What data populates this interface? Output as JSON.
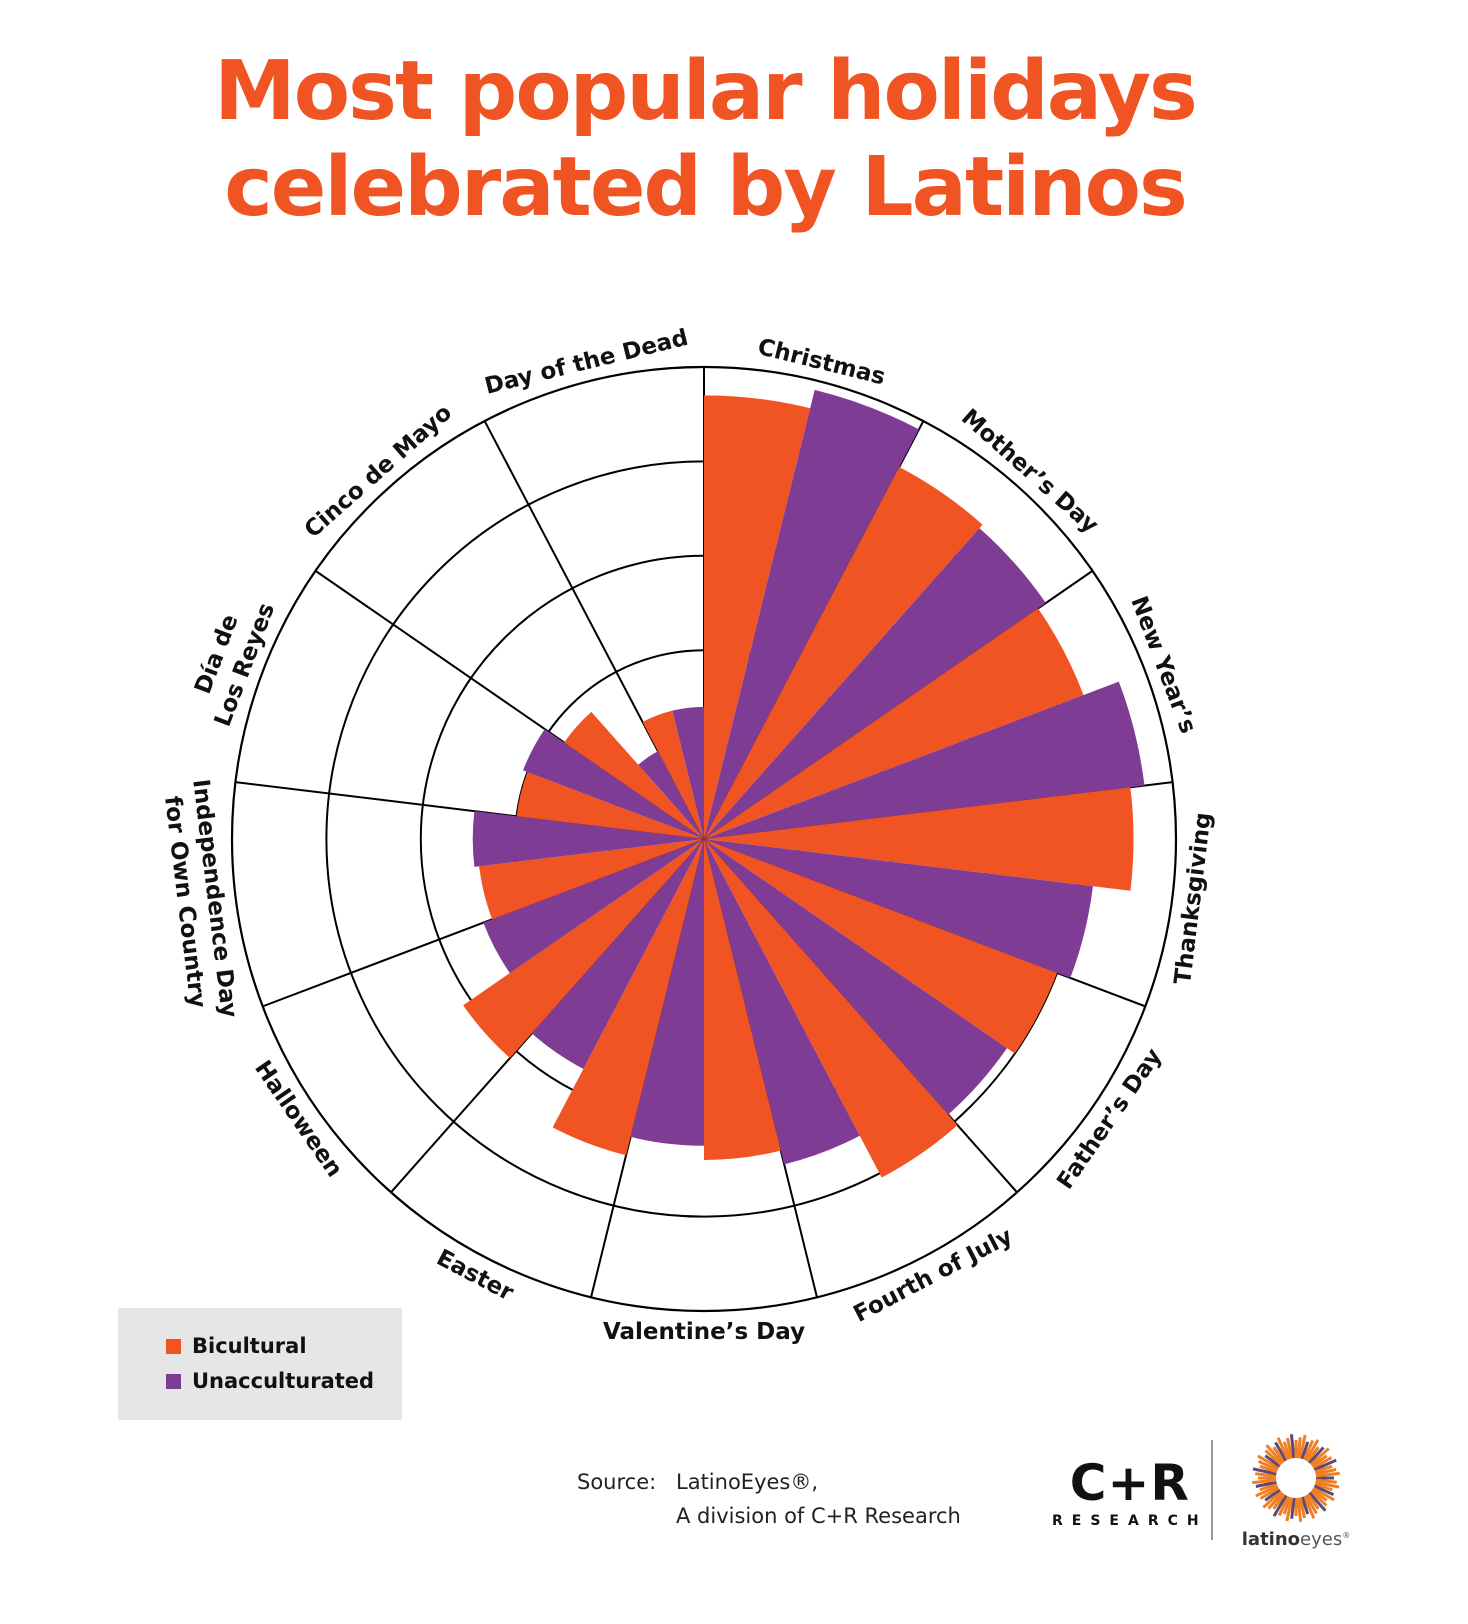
{
  "title": {
    "line1": "Most popular holidays",
    "line2": "celebrated by Latinos"
  },
  "colors": {
    "bicultural": "#F05423",
    "unacculturated": "#7F3C95",
    "title": "#F05423",
    "grid": "#000000",
    "legend_bg": "#E6E6E6"
  },
  "legend": {
    "items": [
      {
        "label": "Bicultural",
        "color": "#F05423"
      },
      {
        "label": "Unacculturated",
        "color": "#7F3C95"
      }
    ]
  },
  "source": {
    "label": "Source:",
    "line1": "LatinoEyes®,",
    "line2": "A division of C+R Research"
  },
  "logos": {
    "cr_main": "C+R",
    "cr_sub": "RESEARCH",
    "latinoeyes_bold": "latino",
    "latinoeyes_light": "eyes",
    "latinoeyes_mark": "®"
  },
  "chart_data": {
    "type": "polar-bar",
    "title": "Most popular holidays celebrated by Latinos",
    "radial_axis": {
      "range": [
        0,
        100
      ],
      "unit": "%",
      "gridlines": [
        20,
        40,
        60,
        80,
        100
      ],
      "tick_labels_shown": false
    },
    "direction": "clockwise from top",
    "legend_position": "bottom-left",
    "categories": [
      {
        "label": [
          "Christmas"
        ]
      },
      {
        "label": [
          "Mother’s Day"
        ]
      },
      {
        "label": [
          "New Year’s"
        ]
      },
      {
        "label": [
          "Thanksgiving"
        ]
      },
      {
        "label": [
          "Father’s Day"
        ]
      },
      {
        "label": [
          "Fourth of July"
        ]
      },
      {
        "label": [
          "Valentine’s Day"
        ]
      },
      {
        "label": [
          "Easter"
        ]
      },
      {
        "label": [
          "Halloween"
        ]
      },
      {
        "label": [
          "Independence Day",
          "for Own Country"
        ]
      },
      {
        "label": [
          "Día de",
          "Los Reyes"
        ]
      },
      {
        "label": [
          "Cinco de Mayo"
        ]
      },
      {
        "label": [
          "Day of the Dead"
        ]
      }
    ],
    "series": [
      {
        "name": "Bicultural",
        "color": "#F05423",
        "values": [
          94,
          89,
          86,
          91,
          80,
          81,
          68,
          69,
          62,
          48,
          40,
          36,
          28
        ]
      },
      {
        "name": "Unacculturated",
        "color": "#7F3C95",
        "values": [
          98,
          88,
          94,
          83,
          78,
          71,
          65,
          55,
          50,
          49,
          41,
          21,
          28
        ]
      }
    ]
  }
}
